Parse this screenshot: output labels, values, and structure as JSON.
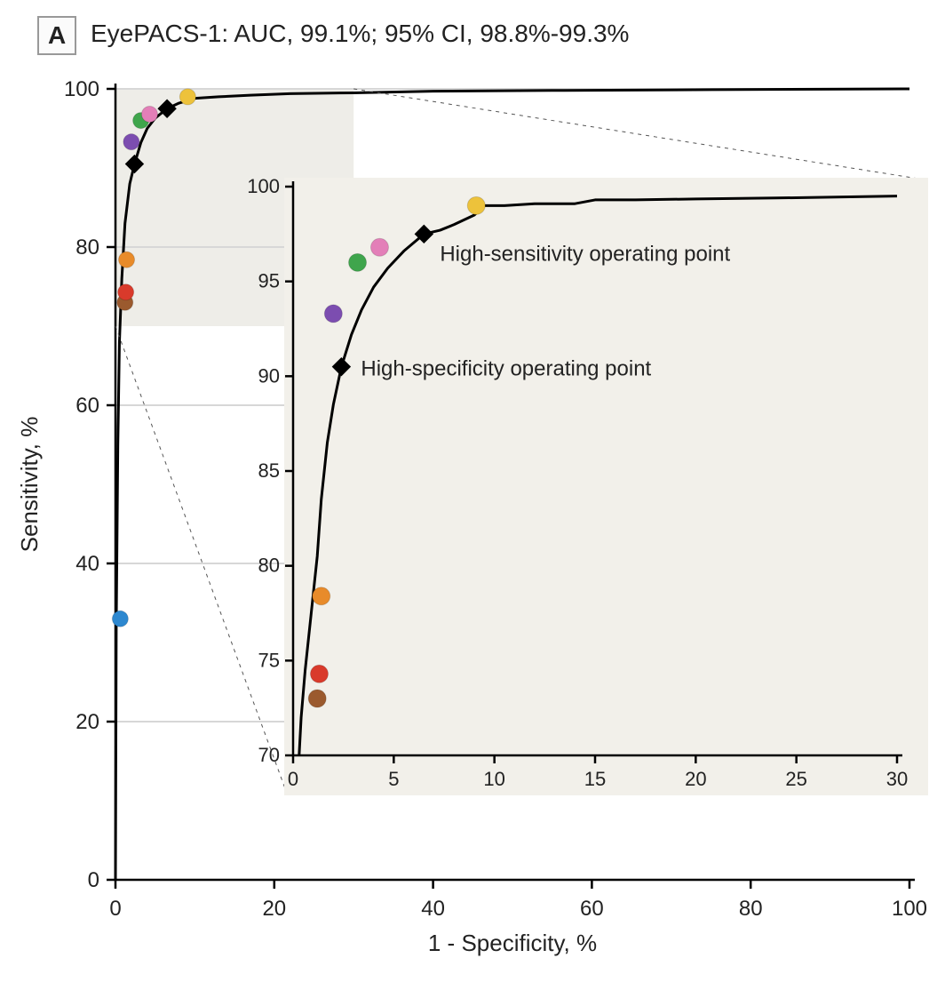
{
  "panel_label": "A",
  "title": "EyePACS-1: AUC, 99.1%; 95% CI, 98.8%-99.3%",
  "main_chart": {
    "type": "roc-curve",
    "x_label": "1 - Specificity, %",
    "y_label": "Sensitivity, %",
    "xlim": [
      0,
      100
    ],
    "ylim": [
      0,
      100
    ],
    "x_ticks": [
      0,
      20,
      40,
      60,
      80,
      100
    ],
    "y_ticks": [
      0,
      20,
      40,
      60,
      80,
      100
    ],
    "background_color": "#ffffff",
    "grid_color": "#d7d7d7",
    "axis_color": "#000000",
    "tick_fontsize": 24,
    "label_fontsize": 26,
    "line_color": "#000000",
    "line_width": 3,
    "shaded_region": {
      "x": [
        0,
        30
      ],
      "y": [
        70,
        100
      ],
      "fill": "#eeede8"
    },
    "roc_points": [
      [
        0.0,
        0.0
      ],
      [
        0.1,
        32.0
      ],
      [
        0.3,
        55.0
      ],
      [
        0.5,
        68.0
      ],
      [
        0.8,
        76.0
      ],
      [
        1.2,
        83.0
      ],
      [
        1.8,
        88.0
      ],
      [
        2.4,
        90.5
      ],
      [
        3.2,
        93.2
      ],
      [
        4.0,
        95.0
      ],
      [
        5.0,
        96.3
      ],
      [
        6.5,
        97.5
      ],
      [
        8.0,
        98.2
      ],
      [
        10.0,
        98.8
      ],
      [
        13.0,
        99.0
      ],
      [
        17.0,
        99.2
      ],
      [
        22.0,
        99.4
      ],
      [
        30.0,
        99.5
      ],
      [
        40.0,
        99.7
      ],
      [
        55.0,
        99.8
      ],
      [
        75.0,
        99.9
      ],
      [
        100.0,
        100.0
      ]
    ],
    "operating_points": [
      {
        "name": "high-specificity",
        "x": 2.4,
        "y": 90.5,
        "shape": "diamond",
        "fill": "#000000",
        "size": 10
      },
      {
        "name": "high-sensitivity",
        "x": 6.5,
        "y": 97.5,
        "shape": "diamond",
        "fill": "#000000",
        "size": 10
      }
    ],
    "scatter": [
      {
        "id": "blue",
        "x": 0.6,
        "y": 33.0,
        "color": "#2d88d0",
        "r": 9
      },
      {
        "id": "brown",
        "x": 1.2,
        "y": 73.0,
        "color": "#9b5a2e",
        "r": 9
      },
      {
        "id": "red",
        "x": 1.3,
        "y": 74.3,
        "color": "#d93a2b",
        "r": 9
      },
      {
        "id": "orange",
        "x": 1.4,
        "y": 78.4,
        "color": "#e88b2a",
        "r": 9
      },
      {
        "id": "purple",
        "x": 2.0,
        "y": 93.3,
        "color": "#7c4db0",
        "r": 9
      },
      {
        "id": "green",
        "x": 3.2,
        "y": 96.0,
        "color": "#3fa54c",
        "r": 9
      },
      {
        "id": "pink",
        "x": 4.3,
        "y": 96.8,
        "color": "#e37fb8",
        "r": 9
      },
      {
        "id": "yellow",
        "x": 9.1,
        "y": 99.0,
        "color": "#edc23b",
        "r": 9
      }
    ]
  },
  "inset_chart": {
    "type": "roc-curve-zoom",
    "x_label": null,
    "y_label": null,
    "xlim": [
      0,
      30
    ],
    "ylim": [
      70,
      100
    ],
    "x_ticks": [
      0,
      5,
      10,
      15,
      20,
      25,
      30
    ],
    "y_ticks": [
      70,
      75,
      80,
      85,
      90,
      95,
      100
    ],
    "background_color": "#f2f0ea",
    "axis_color": "#000000",
    "tick_fontsize": 22,
    "line_color": "#000000",
    "line_width": 3,
    "roc_points": [
      [
        0.3,
        70.0
      ],
      [
        0.4,
        72.0
      ],
      [
        0.6,
        74.5
      ],
      [
        0.9,
        77.5
      ],
      [
        1.2,
        80.5
      ],
      [
        1.4,
        83.5
      ],
      [
        1.7,
        86.5
      ],
      [
        2.0,
        88.5
      ],
      [
        2.4,
        90.5
      ],
      [
        2.9,
        92.2
      ],
      [
        3.4,
        93.5
      ],
      [
        4.0,
        94.7
      ],
      [
        4.7,
        95.7
      ],
      [
        5.5,
        96.6
      ],
      [
        6.5,
        97.5
      ],
      [
        7.3,
        97.7
      ],
      [
        8.0,
        98.0
      ],
      [
        9.0,
        98.5
      ],
      [
        9.5,
        99.0
      ],
      [
        10.5,
        99.0
      ],
      [
        12.0,
        99.1
      ],
      [
        14.0,
        99.1
      ],
      [
        15.0,
        99.3
      ],
      [
        17.0,
        99.3
      ],
      [
        20.0,
        99.35
      ],
      [
        24.0,
        99.4
      ],
      [
        30.0,
        99.5
      ]
    ],
    "operating_points": [
      {
        "name": "high-specificity",
        "x": 2.4,
        "y": 90.5,
        "shape": "diamond",
        "fill": "#000000",
        "size": 10
      },
      {
        "name": "high-sensitivity",
        "x": 6.5,
        "y": 97.5,
        "shape": "diamond",
        "fill": "#000000",
        "size": 10
      }
    ],
    "scatter": [
      {
        "id": "brown",
        "x": 1.2,
        "y": 73.0,
        "color": "#9b5a2e",
        "r": 10
      },
      {
        "id": "red",
        "x": 1.3,
        "y": 74.3,
        "color": "#d93a2b",
        "r": 10
      },
      {
        "id": "orange",
        "x": 1.4,
        "y": 78.4,
        "color": "#e88b2a",
        "r": 10
      },
      {
        "id": "purple",
        "x": 2.0,
        "y": 93.3,
        "color": "#7c4db0",
        "r": 10
      },
      {
        "id": "green",
        "x": 3.2,
        "y": 96.0,
        "color": "#3fa54c",
        "r": 10
      },
      {
        "id": "pink",
        "x": 4.3,
        "y": 96.8,
        "color": "#e37fb8",
        "r": 10
      },
      {
        "id": "yellow",
        "x": 9.1,
        "y": 99.0,
        "color": "#edc23b",
        "r": 10
      }
    ],
    "annotations": {
      "high_sensitivity_label": "High-sensitivity operating point",
      "high_specificity_label": "High-specificity operating point"
    }
  }
}
